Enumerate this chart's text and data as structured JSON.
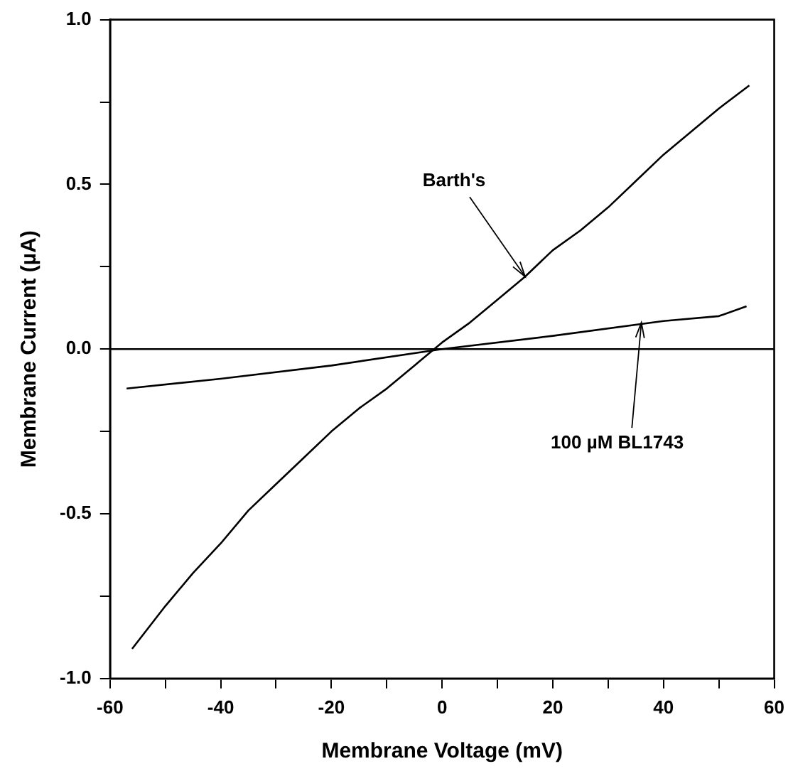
{
  "chart_data": {
    "type": "line",
    "xlabel": "Membrane Voltage (mV)",
    "ylabel": "Membrane Current (µA)",
    "xlim": [
      -60,
      60
    ],
    "ylim": [
      -1.0,
      1.0
    ],
    "xticks": [
      -60,
      {
        "value": -50,
        "label": null
      },
      -40,
      {
        "value": -30,
        "label": null
      },
      -20,
      {
        "value": -10,
        "label": null
      },
      0,
      {
        "value": 10,
        "label": null
      },
      20,
      {
        "value": 30,
        "label": null
      },
      40,
      {
        "value": 50,
        "label": null
      },
      60
    ],
    "yticks": [
      {
        "value": -1.0,
        "label": "-1.0"
      },
      {
        "value": -0.75,
        "label": null
      },
      {
        "value": -0.5,
        "label": "-0.5"
      },
      {
        "value": -0.25,
        "label": null
      },
      {
        "value": 0,
        "label": "0.0"
      },
      {
        "value": 0.25,
        "label": null
      },
      {
        "value": 0.5,
        "label": "0.5"
      },
      {
        "value": 0.75,
        "label": null
      },
      {
        "value": 1.0,
        "label": "1.0"
      }
    ],
    "series": [
      {
        "color": "#000000",
        "x": [
          -56,
          -50,
          -45,
          -40,
          -35,
          -30,
          -25,
          -20,
          -15,
          -10,
          -5,
          0,
          5,
          10,
          15,
          20,
          25,
          30,
          35,
          40,
          45,
          50,
          55.5
        ],
        "values": [
          -0.91,
          -0.78,
          -0.68,
          -0.59,
          -0.49,
          -0.41,
          -0.33,
          -0.25,
          -0.18,
          -0.12,
          -0.05,
          0.02,
          0.08,
          0.15,
          0.22,
          0.3,
          0.36,
          0.43,
          0.51,
          0.59,
          0.66,
          0.73,
          0.8
        ]
      },
      {
        "color": "#000000",
        "x": [
          -57,
          -40,
          -20,
          0,
          20,
          40,
          50,
          55
        ],
        "values": [
          -0.12,
          -0.09,
          -0.05,
          0.0,
          0.04,
          0.085,
          0.1,
          0.13
        ]
      }
    ],
    "ref_lines": [
      {
        "axis": "y",
        "value": 0,
        "color": "#000000"
      }
    ],
    "annotations": [
      {
        "text": "Barth's",
        "x": 15,
        "y": 0.22
      },
      {
        "text": "100 µM BL1743",
        "x": 36,
        "y": 0.08
      }
    ],
    "grid": false,
    "legend": false,
    "marker": "none",
    "line_style": "solid"
  }
}
